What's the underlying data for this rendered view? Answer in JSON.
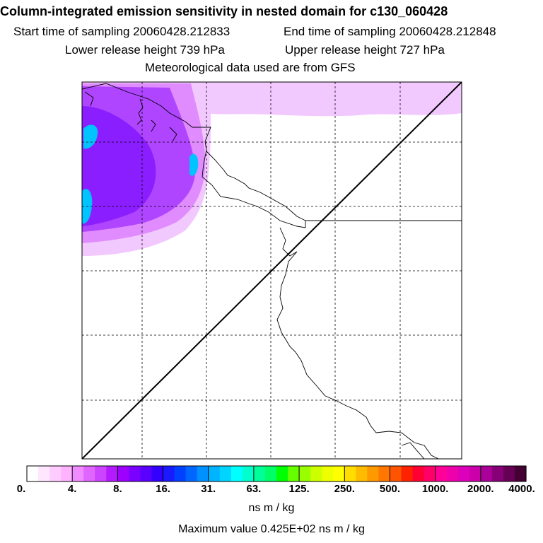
{
  "header": {
    "title": "Column-integrated emission sensitivity in nested domain for c130_060428",
    "start_time": "Start time of sampling 20060428.212833",
    "end_time": "End time of sampling 20060428.212848",
    "lower_release": "Lower release height  739 hPa",
    "upper_release": "Upper release height  727 hPa",
    "met_data": "Meteorological data used are from GFS"
  },
  "colorbar": {
    "tick_labels": [
      "0.",
      "4.",
      "8.",
      "16.",
      "31.",
      "63.",
      "125.",
      "250.",
      "500.",
      "1000.",
      "2000.",
      "4000."
    ],
    "colors": [
      "#ffffff",
      "#ffe6ff",
      "#ffccff",
      "#ffb3ff",
      "#f08cff",
      "#e066ff",
      "#cc44ff",
      "#b31aff",
      "#9d00ff",
      "#7a00ff",
      "#5a00ff",
      "#3300ff",
      "#1a1aff",
      "#0040ff",
      "#0066ff",
      "#0090ff",
      "#00b4ff",
      "#00d4ff",
      "#00ffff",
      "#00ffcc",
      "#00ff99",
      "#00ff66",
      "#00ff00",
      "#66ff00",
      "#99ff00",
      "#ccff00",
      "#eeff00",
      "#ffff00",
      "#ffdd00",
      "#ffbb00",
      "#ff9900",
      "#ff7700",
      "#ff5500",
      "#ff2200",
      "#ff0033",
      "#ff0066",
      "#ff0099",
      "#ee00aa",
      "#dd00bb",
      "#cc00aa",
      "#aa0099",
      "#880077",
      "#660055",
      "#440033"
    ],
    "units": "ns m / kg",
    "max_value": "Maximum value  0.425E+02 ns m / kg"
  },
  "map": {
    "field_colors": {
      "light": "#f2c9ff",
      "medium": "#e08cff",
      "strong": "#b045ff",
      "deep": "#8a1eff",
      "peak": "#00c4ff"
    },
    "line_color": "#000000"
  }
}
